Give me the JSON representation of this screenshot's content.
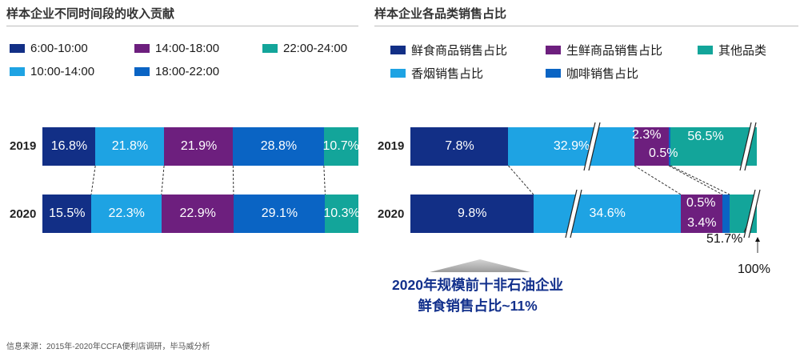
{
  "chart_data": [
    {
      "type": "stacked-bar",
      "title": "样本企业不同时间段的收入贡献",
      "categories": [
        "2019",
        "2020"
      ],
      "series": [
        {
          "name": "6:00-10:00",
          "color": "#122f86",
          "values": [
            16.8,
            15.5
          ],
          "labels": [
            "16.8%",
            "15.5%"
          ]
        },
        {
          "name": "10:00-14:00",
          "color": "#1ea3e3",
          "values": [
            21.8,
            22.3
          ],
          "labels": [
            "21.8%",
            "22.3%"
          ]
        },
        {
          "name": "14:00-18:00",
          "color": "#6d1f7e",
          "values": [
            21.9,
            22.9
          ],
          "labels": [
            "21.9%",
            "22.9%"
          ]
        },
        {
          "name": "18:00-22:00",
          "color": "#0a64c4",
          "values": [
            28.8,
            29.1
          ],
          "labels": [
            "28.8%",
            "29.1%"
          ]
        },
        {
          "name": "22:00-24:00",
          "color": "#13a59a",
          "values": [
            10.7,
            10.3
          ],
          "labels": [
            "10.7%",
            "10.3%"
          ]
        }
      ],
      "legend_order": [
        "6:00-10:00",
        "14:00-18:00",
        "22:00-24:00",
        "10:00-14:00",
        "18:00-22:00"
      ]
    },
    {
      "type": "stacked-bar",
      "title": "样本企业各品类销售占比",
      "categories": [
        "2019",
        "2020"
      ],
      "series": [
        {
          "name": "鲜食商品销售占比",
          "color": "#122f86",
          "values": [
            7.8,
            9.8
          ],
          "labels": [
            "7.8%",
            "9.8%"
          ]
        },
        {
          "name": "香烟销售占比",
          "color": "#1ea3e3",
          "values": [
            32.9,
            34.6
          ],
          "labels": [
            "32.9%",
            "34.6%"
          ]
        },
        {
          "name": "生鲜商品销售占比",
          "color": "#6d1f7e",
          "values": [
            2.3,
            3.4
          ],
          "labels": [
            "2.3%",
            "3.4%"
          ]
        },
        {
          "name": "咖啡销售占比",
          "color": "#0a64c4",
          "values": [
            0.5,
            0.5
          ],
          "labels": [
            "0.5%",
            "0.5%"
          ]
        },
        {
          "name": "其他品类",
          "color": "#13a59a",
          "values": [
            56.5,
            51.7
          ],
          "labels": [
            "56.5%",
            "51.7%"
          ]
        }
      ],
      "total_label": "100%",
      "legend_order": [
        "鲜食商品销售占比",
        "生鲜商品销售占比",
        "其他品类",
        "香烟销售占比",
        "咖啡销售占比"
      ]
    }
  ],
  "callout": {
    "line1": "2020年规模前十非石油企业",
    "line2": "鲜食销售占比~11%"
  },
  "footnote": "信息来源：2015年-2020年CCFA便利店调研，毕马威分析"
}
